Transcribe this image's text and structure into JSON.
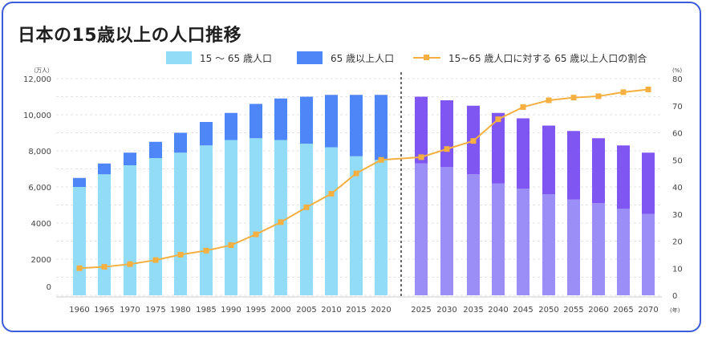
{
  "title": "日本の15歳以上の人口推移",
  "legend": {
    "working_age": "15 〜 65 歳人口",
    "elderly": "65 歳以上人口",
    "ratio": "15~65 歳人口に対する 65 歳以上人口の割合"
  },
  "colors": {
    "working_actual": "#93dcf8",
    "elderly_actual": "#4f86f7",
    "working_projected": "#9b8ff7",
    "elderly_projected": "#7f56f2",
    "ratio_line": "#f5b041",
    "frame": "#3b5bdb"
  },
  "chart_data": {
    "type": "bar",
    "stacked": true,
    "title": "日本の15歳以上の人口推移",
    "categories": [
      "1960",
      "1965",
      "1970",
      "1975",
      "1980",
      "1985",
      "1990",
      "1995",
      "2000",
      "2005",
      "2010",
      "2015",
      "2020",
      "2025",
      "2030",
      "2035",
      "2040",
      "2045",
      "2050",
      "2055",
      "2060",
      "2065",
      "2070"
    ],
    "projection_start": "2025",
    "series": [
      {
        "name": "15 〜 65 歳人口",
        "axis": "left",
        "values": [
          6000,
          6700,
          7200,
          7600,
          7900,
          8300,
          8600,
          8700,
          8600,
          8400,
          8200,
          7700,
          7500,
          7300,
          7100,
          6700,
          6200,
          5900,
          5600,
          5300,
          5100,
          4800,
          4500
        ]
      },
      {
        "name": "65 歳以上人口",
        "axis": "left",
        "values": [
          500,
          600,
          700,
          900,
          1100,
          1300,
          1500,
          1900,
          2300,
          2600,
          2900,
          3400,
          3600,
          3700,
          3700,
          3800,
          3900,
          3900,
          3800,
          3800,
          3600,
          3500,
          3400
        ]
      },
      {
        "name": "15~65 歳人口に対する 65 歳以上人口の割合",
        "axis": "right",
        "type": "line",
        "values": [
          10,
          10.5,
          11.5,
          13,
          15,
          16.5,
          18.5,
          22.5,
          27,
          32.5,
          37.5,
          45,
          50,
          51,
          54,
          57,
          65,
          69.5,
          72,
          73,
          73.5,
          75,
          76
        ]
      }
    ],
    "y_left": {
      "unit": "（万人）",
      "ticks": [
        "0",
        "2000",
        "4000",
        "6,000",
        "8,000",
        "10,000",
        "12,000"
      ],
      "ylim": [
        0,
        12000
      ]
    },
    "y_right": {
      "unit": "(%)",
      "ticks": [
        "0",
        "10",
        "20",
        "30",
        "40",
        "50",
        "60",
        "70",
        "80"
      ],
      "ylim": [
        0,
        80
      ]
    },
    "x_unit": "(年)",
    "grid": true,
    "legend_position": "top"
  }
}
